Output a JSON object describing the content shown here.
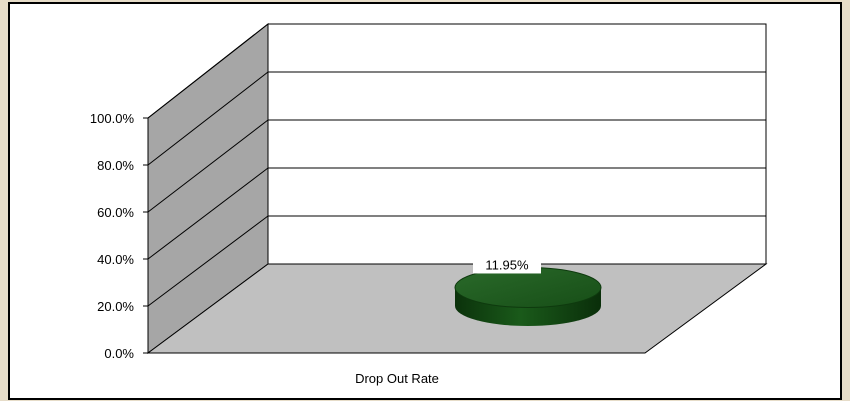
{
  "chart_data": {
    "type": "bar",
    "style": "3d-cylinder",
    "categories": [
      "Drop Out Rate"
    ],
    "series": [
      {
        "values": [
          11.95
        ]
      }
    ],
    "data_labels": [
      "11.95%"
    ],
    "y_ticks": [
      "0.0%",
      "20.0%",
      "40.0%",
      "60.0%",
      "80.0%",
      "100.0%"
    ],
    "ylim": [
      0,
      120
    ],
    "grid": true,
    "legend": "none",
    "title": "",
    "xlabel": "",
    "ylabel": ""
  },
  "colors": {
    "plot_background": "#ffffff",
    "chart_border": "#000000",
    "back_wall": "#ffffff",
    "side_wall": "#a6a6a6",
    "floor": "#c0c0c0",
    "gridline": "#000000",
    "bar_top": "#1e5a1e",
    "bar_side": "#0f3f0f",
    "page_background": "#e6dcc8"
  }
}
